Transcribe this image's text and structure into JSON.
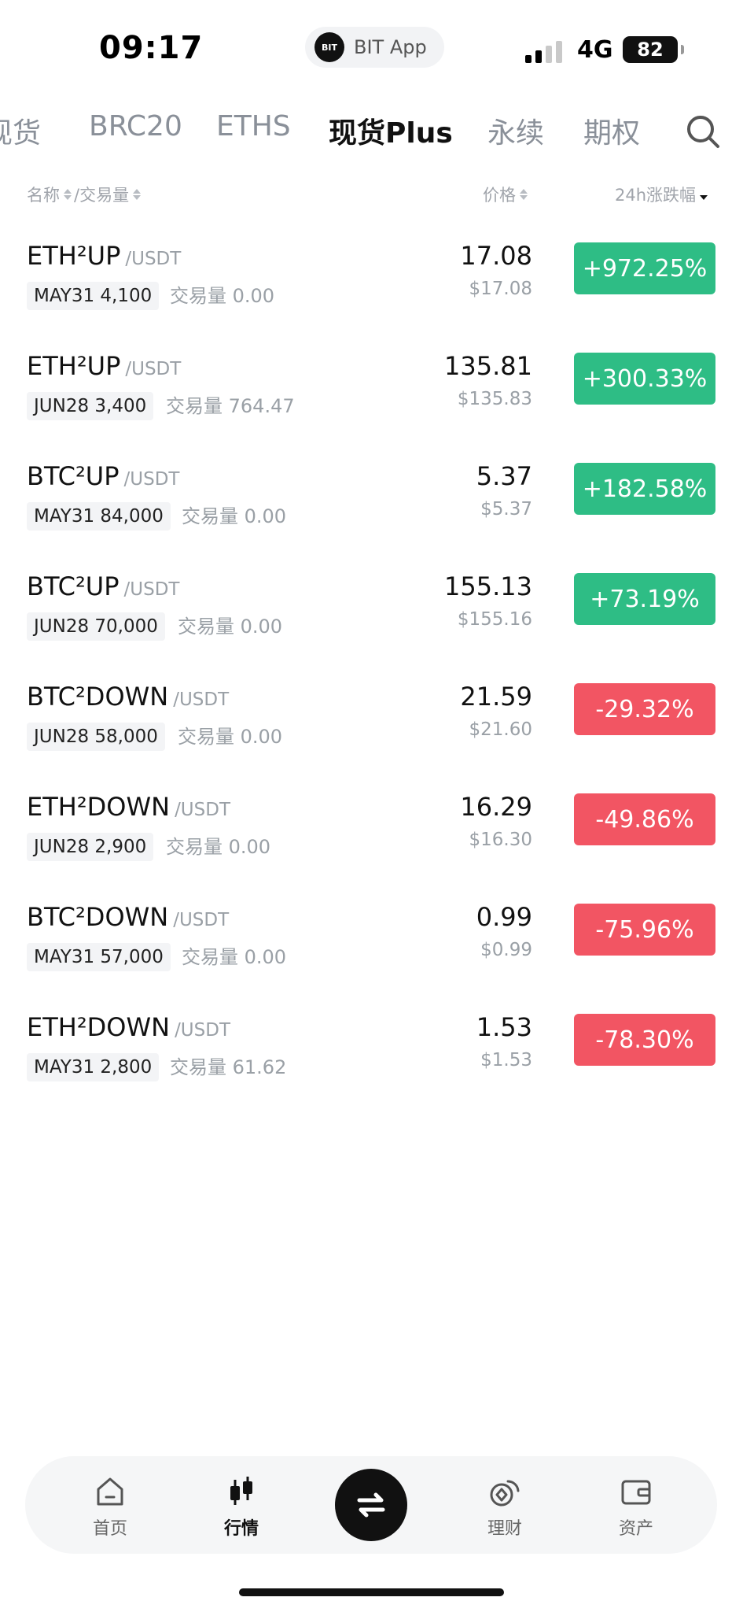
{
  "status_bar": {
    "time": "09:17",
    "app_logo": "BIT",
    "app_name": "BIT App",
    "network": "4G",
    "battery": "82"
  },
  "tabs": [
    {
      "label": "现货",
      "active": false
    },
    {
      "label": "BRC20",
      "active": false
    },
    {
      "label": "ETHS",
      "active": false
    },
    {
      "label": "现货Plus",
      "active": true
    },
    {
      "label": "永续",
      "active": false
    },
    {
      "label": "期权",
      "active": false
    }
  ],
  "header": {
    "name_label": "名称",
    "volume_label": "/交易量",
    "price_label": "价格",
    "change_label": "24h涨跌幅"
  },
  "rows": [
    {
      "base": "ETH²UP",
      "quote": "/USDT",
      "tag": "MAY31 4,100",
      "vol_label": "交易量",
      "vol": "0.00",
      "price": "17.08",
      "usd": "$17.08",
      "change": "+972.25%",
      "dir": "up"
    },
    {
      "base": "ETH²UP",
      "quote": "/USDT",
      "tag": "JUN28 3,400",
      "vol_label": "交易量",
      "vol": "764.47",
      "price": "135.81",
      "usd": "$135.83",
      "change": "+300.33%",
      "dir": "up"
    },
    {
      "base": "BTC²UP",
      "quote": "/USDT",
      "tag": "MAY31 84,000",
      "vol_label": "交易量",
      "vol": "0.00",
      "price": "5.37",
      "usd": "$5.37",
      "change": "+182.58%",
      "dir": "up"
    },
    {
      "base": "BTC²UP",
      "quote": "/USDT",
      "tag": "JUN28 70,000",
      "vol_label": "交易量",
      "vol": "0.00",
      "price": "155.13",
      "usd": "$155.16",
      "change": "+73.19%",
      "dir": "up"
    },
    {
      "base": "BTC²DOWN",
      "quote": "/USDT",
      "tag": "JUN28 58,000",
      "vol_label": "交易量",
      "vol": "0.00",
      "price": "21.59",
      "usd": "$21.60",
      "change": "-29.32%",
      "dir": "down"
    },
    {
      "base": "ETH²DOWN",
      "quote": "/USDT",
      "tag": "JUN28 2,900",
      "vol_label": "交易量",
      "vol": "0.00",
      "price": "16.29",
      "usd": "$16.30",
      "change": "-49.86%",
      "dir": "down"
    },
    {
      "base": "BTC²DOWN",
      "quote": "/USDT",
      "tag": "MAY31 57,000",
      "vol_label": "交易量",
      "vol": "0.00",
      "price": "0.99",
      "usd": "$0.99",
      "change": "-75.96%",
      "dir": "down"
    },
    {
      "base": "ETH²DOWN",
      "quote": "/USDT",
      "tag": "MAY31 2,800",
      "vol_label": "交易量",
      "vol": "61.62",
      "price": "1.53",
      "usd": "$1.53",
      "change": "-78.30%",
      "dir": "down"
    }
  ],
  "nav": {
    "home": "首页",
    "markets": "行情",
    "trade_icon": "swap-icon",
    "earn": "理财",
    "assets": "资产"
  },
  "colors": {
    "up": "#2ebd85",
    "down": "#f25563",
    "muted": "#9aa0a6"
  }
}
